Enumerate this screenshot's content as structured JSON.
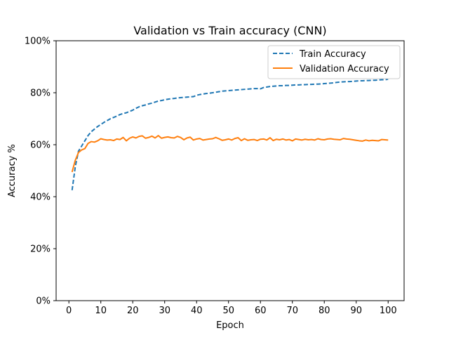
{
  "chart_data": {
    "type": "line",
    "title": "Validation vs Train accuracy (CNN)",
    "xlabel": "Epoch",
    "ylabel": "Accuracy %",
    "xlim": [
      -4,
      105
    ],
    "ylim": [
      0,
      100
    ],
    "xticks": [
      0,
      10,
      20,
      30,
      40,
      50,
      60,
      70,
      80,
      90,
      100
    ],
    "yticks": [
      0,
      20,
      40,
      60,
      80,
      100
    ],
    "ytick_labels": [
      "0%",
      "20%",
      "40%",
      "60%",
      "80%",
      "100%"
    ],
    "grid": false,
    "legend_position": "upper right",
    "x": [
      1,
      2,
      3,
      4,
      5,
      6,
      7,
      8,
      9,
      10,
      11,
      12,
      13,
      14,
      15,
      16,
      17,
      18,
      19,
      20,
      21,
      22,
      23,
      24,
      25,
      26,
      27,
      28,
      29,
      30,
      31,
      32,
      33,
      34,
      35,
      36,
      37,
      38,
      39,
      40,
      41,
      42,
      43,
      44,
      45,
      46,
      47,
      48,
      49,
      50,
      51,
      52,
      53,
      54,
      55,
      56,
      57,
      58,
      59,
      60,
      61,
      62,
      63,
      64,
      65,
      66,
      67,
      68,
      69,
      70,
      71,
      72,
      73,
      74,
      75,
      76,
      77,
      78,
      79,
      80,
      81,
      82,
      83,
      84,
      85,
      86,
      87,
      88,
      89,
      90,
      91,
      92,
      93,
      94,
      95,
      96,
      97,
      98,
      99,
      100
    ],
    "series": [
      {
        "name": "Train Accuracy",
        "color": "#1f77b4",
        "style": "dashed",
        "values": [
          42.5,
          51.5,
          57.5,
          59.5,
          61.5,
          63.5,
          65.0,
          66.0,
          67.0,
          67.8,
          68.6,
          69.3,
          70.0,
          70.5,
          71.0,
          71.6,
          72.0,
          72.3,
          72.8,
          73.3,
          74.0,
          74.6,
          75.0,
          75.3,
          75.7,
          76.0,
          76.4,
          76.8,
          77.0,
          77.3,
          77.5,
          77.7,
          77.8,
          78.0,
          78.1,
          78.2,
          78.3,
          78.4,
          78.5,
          79.0,
          79.3,
          79.5,
          79.7,
          79.8,
          80.0,
          80.2,
          80.4,
          80.6,
          80.7,
          80.8,
          80.9,
          81.0,
          81.1,
          81.2,
          81.3,
          81.4,
          81.5,
          81.6,
          81.6,
          81.5,
          82.0,
          82.2,
          82.4,
          82.5,
          82.6,
          82.7,
          82.7,
          82.8,
          82.8,
          82.9,
          83.0,
          83.0,
          83.1,
          83.1,
          83.2,
          83.2,
          83.3,
          83.3,
          83.4,
          83.5,
          83.6,
          83.7,
          83.8,
          84.0,
          84.1,
          84.2,
          84.3,
          84.3,
          84.4,
          84.5,
          84.6,
          84.6,
          84.7,
          84.7,
          84.8,
          84.8,
          84.9,
          85.0,
          85.0,
          85.2
        ]
      },
      {
        "name": "Validation Accuracy",
        "color": "#ff7f0e",
        "style": "solid",
        "values": [
          49.5,
          54.0,
          57.0,
          58.0,
          58.5,
          60.5,
          61.2,
          61.0,
          61.5,
          62.3,
          62.0,
          61.8,
          61.9,
          61.6,
          62.2,
          62.0,
          62.8,
          61.5,
          62.5,
          63.0,
          62.6,
          63.2,
          63.4,
          62.5,
          62.8,
          63.3,
          62.6,
          63.5,
          62.5,
          62.8,
          63.0,
          62.7,
          62.6,
          63.2,
          62.8,
          61.9,
          62.6,
          62.9,
          61.8,
          62.2,
          62.4,
          61.8,
          62.0,
          62.2,
          62.3,
          62.8,
          62.3,
          61.7,
          61.9,
          62.2,
          61.8,
          62.4,
          62.7,
          61.6,
          62.3,
          61.7,
          61.9,
          62.0,
          61.6,
          62.1,
          62.2,
          61.8,
          62.7,
          61.6,
          62.1,
          61.9,
          62.2,
          61.8,
          62.0,
          61.5,
          62.2,
          62.0,
          61.8,
          62.1,
          61.9,
          62.0,
          61.8,
          62.3,
          62.0,
          61.9,
          62.2,
          62.3,
          62.1,
          62.0,
          61.9,
          62.4,
          62.2,
          62.1,
          61.9,
          61.7,
          61.5,
          61.4,
          61.8,
          61.5,
          61.7,
          61.6,
          61.5,
          62.0,
          61.9,
          61.8
        ]
      }
    ]
  }
}
